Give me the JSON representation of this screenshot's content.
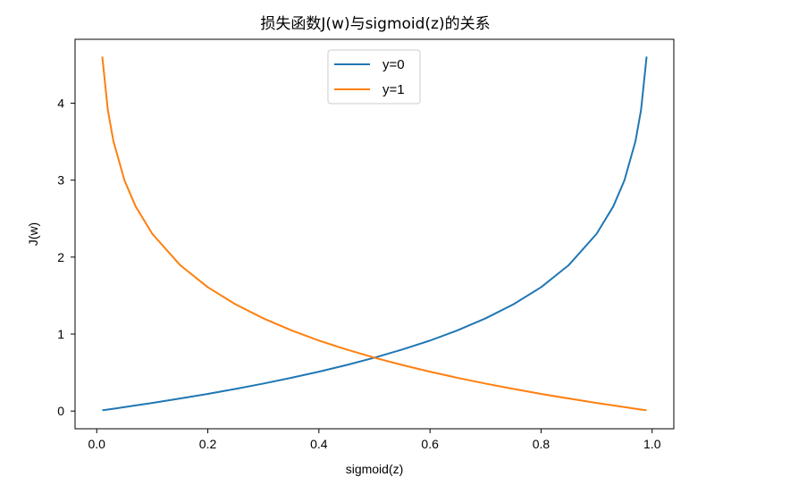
{
  "chart_data": {
    "type": "line",
    "title": "损失函数J(w)与sigmoid(z)的关系",
    "xlabel": "sigmoid(z)",
    "ylabel": "J(w)",
    "xlim": [
      -0.039,
      1.039
    ],
    "ylim": [
      -0.23,
      4.83
    ],
    "xticks": [
      0.0,
      0.2,
      0.4,
      0.6,
      0.8,
      1.0
    ],
    "xtick_labels": [
      "0.0",
      "0.2",
      "0.4",
      "0.6",
      "0.8",
      "1.0"
    ],
    "yticks": [
      0,
      1,
      2,
      3,
      4
    ],
    "ytick_labels": [
      "0",
      "1",
      "2",
      "3",
      "4"
    ],
    "grid": false,
    "legend_position": "upper-center",
    "x": [
      0.01,
      0.02,
      0.03,
      0.05,
      0.07,
      0.1,
      0.15,
      0.2,
      0.25,
      0.3,
      0.35,
      0.4,
      0.45,
      0.5,
      0.55,
      0.6,
      0.65,
      0.7,
      0.75,
      0.8,
      0.85,
      0.9,
      0.93,
      0.95,
      0.97,
      0.98,
      0.99
    ],
    "series": [
      {
        "name": "y=0",
        "color": "#1f77b4",
        "values": [
          0.01,
          0.02,
          0.03,
          0.051,
          0.073,
          0.105,
          0.163,
          0.223,
          0.288,
          0.357,
          0.431,
          0.511,
          0.598,
          0.693,
          0.799,
          0.916,
          1.05,
          1.204,
          1.386,
          1.609,
          1.897,
          2.303,
          2.659,
          2.996,
          3.507,
          3.912,
          4.605
        ]
      },
      {
        "name": "y=1",
        "color": "#ff7f0e",
        "values": [
          4.605,
          3.912,
          3.507,
          2.996,
          2.659,
          2.303,
          1.897,
          1.609,
          1.386,
          1.204,
          1.05,
          0.916,
          0.799,
          0.693,
          0.598,
          0.511,
          0.431,
          0.357,
          0.288,
          0.223,
          0.163,
          0.105,
          0.073,
          0.051,
          0.03,
          0.02,
          0.01
        ]
      }
    ]
  }
}
